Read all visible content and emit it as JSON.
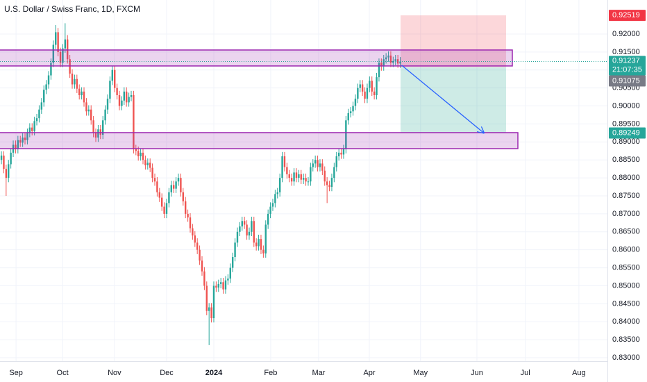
{
  "chart_data": {
    "type": "candlestick",
    "title": "U.S. Dollar / Swiss Franc, 1D, FXCM",
    "up_color": "#26a69a",
    "down_color": "#ef5350",
    "zone_color": "#9c27b0",
    "grid": true,
    "xlim": [
      -0.6,
      256.8
    ],
    "xticks": [
      {
        "value": 6.2,
        "label": "Sep"
      },
      {
        "value": 25.9,
        "label": "Oct"
      },
      {
        "value": 47.9,
        "label": "Nov"
      },
      {
        "value": 70,
        "label": "Dec"
      },
      {
        "value": 90,
        "label": "2024"
      },
      {
        "value": 114.1,
        "label": "Feb"
      },
      {
        "value": 134.4,
        "label": "Mar"
      },
      {
        "value": 155.9,
        "label": "Apr"
      },
      {
        "value": 177.6,
        "label": "May"
      },
      {
        "value": 201.5,
        "label": "Jun"
      },
      {
        "value": 222,
        "label": "Jul"
      },
      {
        "value": 244.7,
        "label": "Aug"
      }
    ],
    "ylim": [
      0.82904,
      0.92946
    ],
    "yticks": [
      {
        "value": 0.83,
        "label": "0.83000"
      },
      {
        "value": 0.835,
        "label": "0.83500"
      },
      {
        "value": 0.84,
        "label": "0.84000"
      },
      {
        "value": 0.845,
        "label": "0.84500"
      },
      {
        "value": 0.85,
        "label": "0.85000"
      },
      {
        "value": 0.855,
        "label": "0.85500"
      },
      {
        "value": 0.86,
        "label": "0.86000"
      },
      {
        "value": 0.865,
        "label": "0.86500"
      },
      {
        "value": 0.87,
        "label": "0.87000"
      },
      {
        "value": 0.875,
        "label": "0.87500"
      },
      {
        "value": 0.88,
        "label": "0.88000"
      },
      {
        "value": 0.885,
        "label": "0.88500"
      },
      {
        "value": 0.89,
        "label": "0.89000"
      },
      {
        "value": 0.895,
        "label": "0.89500"
      },
      {
        "value": 0.9,
        "label": "0.90000"
      },
      {
        "value": 0.905,
        "label": "0.90500"
      },
      {
        "value": 0.91,
        "label": "0.91000"
      },
      {
        "value": 0.915,
        "label": "0.91500"
      },
      {
        "value": 0.92,
        "label": "0.92000"
      }
    ],
    "open": [
      0.885,
      0.8862,
      0.8825,
      0.88,
      0.8838,
      0.887,
      0.8892,
      0.888,
      0.8905,
      0.8898,
      0.8912,
      0.8905,
      0.8925,
      0.894,
      0.893,
      0.8958,
      0.8966,
      0.899,
      0.901,
      0.9045,
      0.906,
      0.9085,
      0.912,
      0.917,
      0.9205,
      0.915,
      0.912,
      0.916,
      0.9185,
      0.913,
      0.909,
      0.906,
      0.9075,
      0.9048,
      0.903,
      0.904,
      0.901,
      0.8985,
      0.899,
      0.896,
      0.8925,
      0.8912,
      0.8935,
      0.892,
      0.896,
      0.899,
      0.902,
      0.907,
      0.91,
      0.905,
      0.903,
      0.9,
      0.9015,
      0.904,
      0.901,
      0.9025,
      0.903,
      0.888,
      0.8875,
      0.886,
      0.887,
      0.885,
      0.8835,
      0.8842,
      0.8828,
      0.88,
      0.879,
      0.876,
      0.8745,
      0.872,
      0.87,
      0.873,
      0.876,
      0.878,
      0.877,
      0.879,
      0.88,
      0.876,
      0.8735,
      0.87,
      0.869,
      0.866,
      0.864,
      0.862,
      0.86,
      0.857,
      0.854,
      0.85,
      0.843,
      0.844,
      0.841,
      0.85,
      0.8495,
      0.8505,
      0.851,
      0.849,
      0.8515,
      0.852,
      0.855,
      0.858,
      0.862,
      0.865,
      0.8665,
      0.868,
      0.867,
      0.864,
      0.865,
      0.868,
      0.862,
      0.861,
      0.863,
      0.86,
      0.859,
      0.867,
      0.87,
      0.872,
      0.873,
      0.8755,
      0.876,
      0.88,
      0.886,
      0.883,
      0.881,
      0.88,
      0.879,
      0.8815,
      0.88,
      0.881,
      0.8795,
      0.88,
      0.879,
      0.879,
      0.883,
      0.884,
      0.885,
      0.883,
      0.884,
      0.882,
      0.879,
      0.878,
      0.8775,
      0.88,
      0.883,
      0.886,
      0.887,
      0.8865,
      0.888,
      0.896,
      0.898,
      0.8985,
      0.9,
      0.902,
      0.905,
      0.906,
      0.904,
      0.902,
      0.905,
      0.907,
      0.904,
      0.903,
      0.908,
      0.912,
      0.911,
      0.913,
      0.9135,
      0.914,
      0.912,
      0.9125,
      0.913,
      0.9118
    ],
    "high": [
      0.8874,
      0.8874,
      0.8837,
      0.885,
      0.8882,
      0.8904,
      0.8904,
      0.8917,
      0.8917,
      0.8924,
      0.8924,
      0.8937,
      0.8952,
      0.8952,
      0.897,
      0.8978,
      0.9002,
      0.9022,
      0.9057,
      0.9072,
      0.9097,
      0.9132,
      0.9182,
      0.9225,
      0.9217,
      0.9162,
      0.9172,
      0.923,
      0.9197,
      0.9142,
      0.9102,
      0.9087,
      0.9087,
      0.906,
      0.9052,
      0.9052,
      0.9022,
      0.9002,
      0.9002,
      0.8972,
      0.8937,
      0.8947,
      0.8947,
      0.8972,
      0.9002,
      0.9032,
      0.9082,
      0.9112,
      0.9112,
      0.9062,
      0.9042,
      0.9027,
      0.9052,
      0.9052,
      0.9037,
      0.9042,
      0.9042,
      0.8892,
      0.8887,
      0.8882,
      0.8882,
      0.8862,
      0.8854,
      0.8854,
      0.884,
      0.8812,
      0.8802,
      0.8772,
      0.8757,
      0.8732,
      0.8742,
      0.8772,
      0.8792,
      0.8792,
      0.8802,
      0.8812,
      0.8812,
      0.8772,
      0.8747,
      0.8712,
      0.8702,
      0.8672,
      0.8652,
      0.8632,
      0.8612,
      0.8582,
      0.8552,
      0.8512,
      0.8452,
      0.8452,
      0.8512,
      0.8512,
      0.8517,
      0.8522,
      0.8522,
      0.8527,
      0.8532,
      0.8562,
      0.8592,
      0.8632,
      0.8662,
      0.8677,
      0.8692,
      0.8692,
      0.8682,
      0.8662,
      0.8692,
      0.8692,
      0.8632,
      0.8642,
      0.8642,
      0.8612,
      0.8682,
      0.8712,
      0.8732,
      0.8742,
      0.8767,
      0.8772,
      0.8812,
      0.8872,
      0.8872,
      0.8842,
      0.8822,
      0.8812,
      0.8827,
      0.8827,
      0.8822,
      0.8822,
      0.8812,
      0.8812,
      0.8802,
      0.8842,
      0.8852,
      0.8862,
      0.8862,
      0.8852,
      0.8852,
      0.8832,
      0.8802,
      0.8792,
      0.8812,
      0.8842,
      0.8872,
      0.8882,
      0.8882,
      0.8892,
      0.8972,
      0.8992,
      0.8997,
      0.9012,
      0.9032,
      0.9062,
      0.9072,
      0.9072,
      0.9052,
      0.9062,
      0.9082,
      0.9082,
      0.9052,
      0.9092,
      0.9132,
      0.9132,
      0.9142,
      0.9147,
      0.9152,
      0.9152,
      0.9137,
      0.9142,
      0.9142,
      0.9136
    ],
    "low": [
      0.8838,
      0.8813,
      0.875,
      0.8788,
      0.8826,
      0.8858,
      0.8868,
      0.8868,
      0.8886,
      0.8886,
      0.8893,
      0.8893,
      0.8913,
      0.8918,
      0.8918,
      0.8946,
      0.8954,
      0.8978,
      0.8998,
      0.9033,
      0.9048,
      0.9073,
      0.9108,
      0.9158,
      0.9138,
      0.9108,
      0.9108,
      0.9148,
      0.9118,
      0.9078,
      0.9048,
      0.9048,
      0.9036,
      0.9018,
      0.9018,
      0.8998,
      0.8973,
      0.8973,
      0.8948,
      0.8913,
      0.89,
      0.89,
      0.8908,
      0.8908,
      0.8948,
      0.8978,
      0.9008,
      0.9058,
      0.9038,
      0.9018,
      0.8988,
      0.8988,
      0.9003,
      0.8998,
      0.8998,
      0.9013,
      0.8868,
      0.8863,
      0.8848,
      0.8848,
      0.8838,
      0.8823,
      0.8823,
      0.8816,
      0.8788,
      0.8778,
      0.8748,
      0.8733,
      0.8708,
      0.8688,
      0.8688,
      0.8718,
      0.8748,
      0.8758,
      0.8758,
      0.8778,
      0.8748,
      0.8723,
      0.8688,
      0.8678,
      0.8648,
      0.8628,
      0.8608,
      0.8588,
      0.8558,
      0.8528,
      0.8488,
      0.8418,
      0.8335,
      0.8398,
      0.8398,
      0.8483,
      0.8483,
      0.8493,
      0.8478,
      0.8478,
      0.8503,
      0.8508,
      0.8538,
      0.8568,
      0.8608,
      0.8638,
      0.8653,
      0.8658,
      0.8628,
      0.8628,
      0.8638,
      0.8608,
      0.8598,
      0.8598,
      0.8588,
      0.8578,
      0.8578,
      0.8658,
      0.8688,
      0.8708,
      0.8718,
      0.8743,
      0.8748,
      0.8788,
      0.8818,
      0.8798,
      0.8788,
      0.8778,
      0.8778,
      0.8788,
      0.8788,
      0.8783,
      0.8783,
      0.8778,
      0.8778,
      0.8778,
      0.8818,
      0.8828,
      0.8818,
      0.8818,
      0.8808,
      0.8778,
      0.873,
      0.8763,
      0.8763,
      0.8788,
      0.8818,
      0.8848,
      0.8853,
      0.8853,
      0.8868,
      0.8948,
      0.8968,
      0.8973,
      0.8988,
      0.9008,
      0.9038,
      0.9028,
      0.9008,
      0.9008,
      0.9038,
      0.9028,
      0.9018,
      0.9018,
      0.9068,
      0.9098,
      0.9098,
      0.9118,
      0.9123,
      0.9108,
      0.9108,
      0.9113,
      0.9106,
      0.9106
    ],
    "close": [
      0.8862,
      0.8825,
      0.88,
      0.8838,
      0.887,
      0.8892,
      0.888,
      0.8905,
      0.8898,
      0.8912,
      0.8905,
      0.8925,
      0.894,
      0.893,
      0.8958,
      0.8966,
      0.899,
      0.901,
      0.9045,
      0.906,
      0.9085,
      0.912,
      0.917,
      0.9205,
      0.915,
      0.912,
      0.916,
      0.9185,
      0.913,
      0.909,
      0.906,
      0.9075,
      0.9048,
      0.903,
      0.904,
      0.901,
      0.8985,
      0.899,
      0.896,
      0.8925,
      0.8912,
      0.8935,
      0.892,
      0.896,
      0.899,
      0.902,
      0.907,
      0.91,
      0.905,
      0.903,
      0.9,
      0.9015,
      0.904,
      0.901,
      0.9025,
      0.903,
      0.888,
      0.8875,
      0.886,
      0.887,
      0.885,
      0.8835,
      0.8842,
      0.8828,
      0.88,
      0.879,
      0.876,
      0.8745,
      0.872,
      0.87,
      0.873,
      0.876,
      0.878,
      0.877,
      0.879,
      0.88,
      0.876,
      0.8735,
      0.87,
      0.869,
      0.866,
      0.864,
      0.862,
      0.86,
      0.857,
      0.854,
      0.85,
      0.843,
      0.844,
      0.841,
      0.85,
      0.8495,
      0.8505,
      0.851,
      0.849,
      0.8515,
      0.852,
      0.855,
      0.858,
      0.862,
      0.865,
      0.8665,
      0.868,
      0.867,
      0.864,
      0.865,
      0.868,
      0.862,
      0.861,
      0.863,
      0.86,
      0.859,
      0.867,
      0.87,
      0.872,
      0.873,
      0.8755,
      0.876,
      0.88,
      0.886,
      0.883,
      0.881,
      0.88,
      0.879,
      0.8815,
      0.88,
      0.881,
      0.8795,
      0.88,
      0.879,
      0.879,
      0.883,
      0.884,
      0.885,
      0.883,
      0.884,
      0.882,
      0.879,
      0.878,
      0.8775,
      0.88,
      0.883,
      0.886,
      0.887,
      0.8865,
      0.888,
      0.896,
      0.898,
      0.8985,
      0.9,
      0.902,
      0.905,
      0.906,
      0.904,
      0.902,
      0.905,
      0.907,
      0.904,
      0.903,
      0.908,
      0.912,
      0.911,
      0.913,
      0.9135,
      0.914,
      0.912,
      0.9125,
      0.913,
      0.9118,
      0.91237
    ],
    "zones": [
      {
        "top": 0.91556,
        "bottom": 0.91112
      },
      {
        "top": 0.89258,
        "bottom": 0.88813
      }
    ],
    "position": {
      "stop": 0.92519,
      "entry": 0.91075,
      "target": 0.89249
    },
    "last_price": {
      "value": 0.91237,
      "countdown": "21:07:35",
      "color": "#26a69a"
    },
    "price_labels": [
      {
        "value": 0.92519,
        "color": "#f23645"
      },
      {
        "value": 0.91075,
        "color": "#787b86"
      },
      {
        "value": 0.89249,
        "color": "#26a69a"
      }
    ]
  }
}
